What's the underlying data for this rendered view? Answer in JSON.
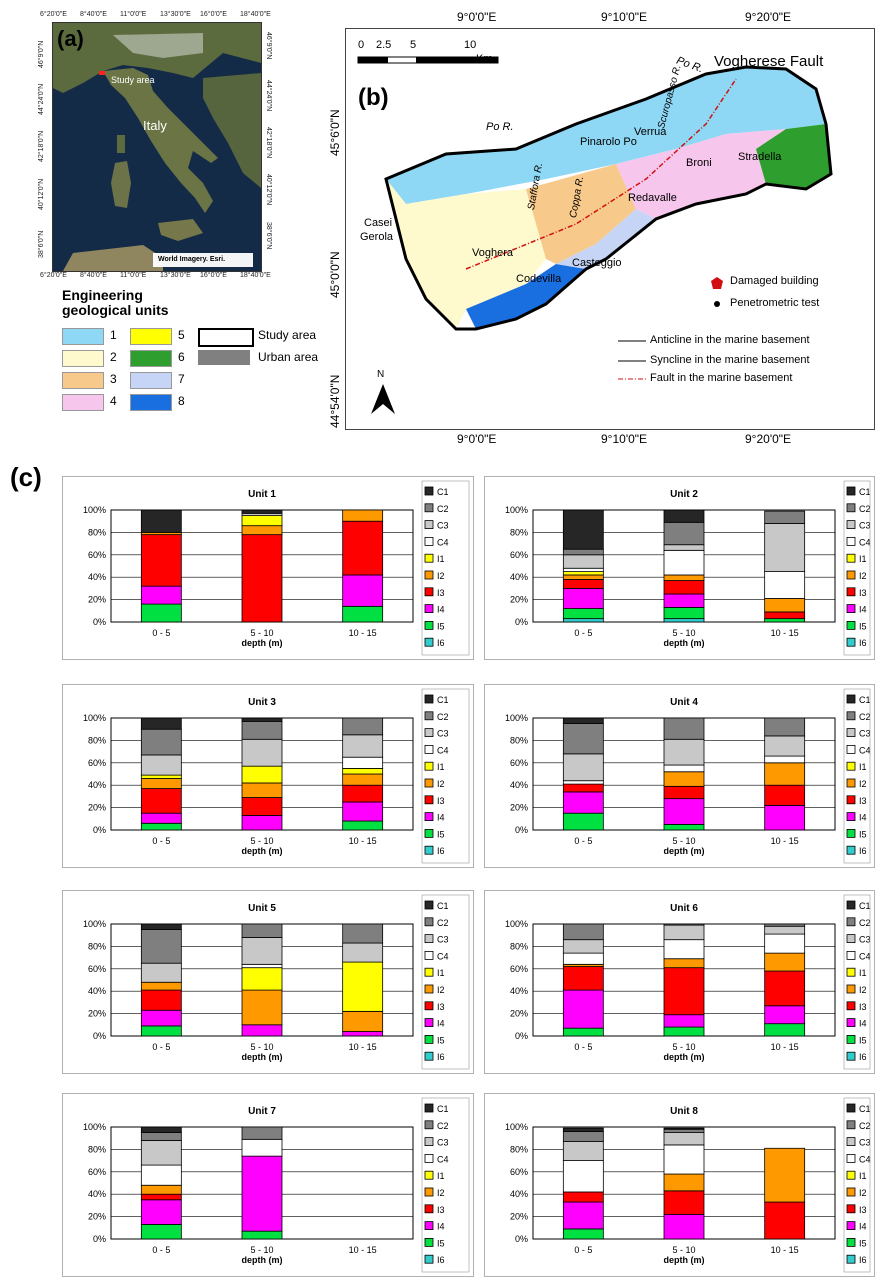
{
  "panel_a": {
    "label": "(a)",
    "study_area_label": "Study area",
    "country_label": "Italy",
    "attribution": "World Imagery. Esri.",
    "top_ticks": [
      "6°20'0\"E",
      "8°40'0\"E",
      "11°0'0\"E",
      "13°30'0\"E",
      "16°0'0\"E",
      "18°40'0\"E"
    ],
    "bottom_ticks": [
      "6°20'0\"E",
      "8°40'0\"E",
      "11°0'0\"E",
      "13°30'0\"E",
      "16°0'0\"E",
      "18°40'0\"E"
    ],
    "left_ticks": [
      "46°9'0\"N",
      "44°24'0\"N",
      "42°18'0\"N",
      "40°12'0\"N",
      "38°6'0\"N"
    ],
    "right_ticks": [
      "46°9'0\"N",
      "44°24'0\"N",
      "42°18'0\"N",
      "40°12'0\"N",
      "38°6'0\"N"
    ]
  },
  "legend_units": {
    "title_line1": "Engineering",
    "title_line2": "geological units",
    "items": [
      {
        "label": "1",
        "color": "#8fd8f5"
      },
      {
        "label": "2",
        "color": "#fffacd"
      },
      {
        "label": "3",
        "color": "#f7c98b"
      },
      {
        "label": "4",
        "color": "#f7c6ec"
      },
      {
        "label": "5",
        "color": "#ffff00"
      },
      {
        "label": "6",
        "color": "#2e9e2e"
      },
      {
        "label": "7",
        "color": "#c6d4f5"
      },
      {
        "label": "8",
        "color": "#1a6fe0"
      }
    ],
    "study_area": "Study area",
    "urban_area": "Urban area",
    "urban_color": "#808080"
  },
  "panel_b": {
    "label": "(b)",
    "top_ticks": [
      "9°0'0\"E",
      "9°10'0\"E",
      "9°20'0\"E"
    ],
    "bottom_ticks": [
      "9°0'0\"E",
      "9°10'0\"E",
      "9°20'0\"E"
    ],
    "left_ticks": [
      "45°6'0\"N",
      "45°0'0\"N",
      "44°54'0\"N"
    ],
    "scale": [
      "0",
      "2.5",
      "5",
      "10",
      "Km"
    ],
    "fault_title": "Vogherese Fault",
    "places": [
      "Verrua",
      "Pinarolo Po",
      "Broni",
      "Stradella",
      "Redavalle",
      "Casteggio",
      "Codevilla",
      "Voghera",
      "Casei",
      "Gerola"
    ],
    "rivers": [
      "Po R.",
      "Po R.",
      "Scuropasso R.",
      "Stafforа R.",
      "Coppa R."
    ],
    "north": "N",
    "legend": {
      "damaged": "Damaged building",
      "penetrometric": "Penetrometric test",
      "anticline": "Anticline in the marine basement",
      "syncline": "Syncline in the marine basement",
      "fault": "Fault in the marine basement"
    }
  },
  "panel_c_label": "(c)",
  "chart_legend": [
    {
      "name": "C1",
      "color": "#262626"
    },
    {
      "name": "C2",
      "color": "#7f7f7f"
    },
    {
      "name": "C3",
      "color": "#c8c8c8"
    },
    {
      "name": "C4",
      "color": "#ffffff"
    },
    {
      "name": "I1",
      "color": "#ffff00"
    },
    {
      "name": "I2",
      "color": "#ff9900"
    },
    {
      "name": "I3",
      "color": "#ff0000"
    },
    {
      "name": "I4",
      "color": "#ff00ff"
    },
    {
      "name": "I5",
      "color": "#00e040"
    },
    {
      "name": "I6",
      "color": "#33cccc"
    }
  ],
  "chart_data": [
    {
      "type": "bar",
      "stacked": true,
      "title": "Unit 1",
      "xlabel": "depth (m)",
      "ylabel": "",
      "ylim": [
        0,
        100
      ],
      "yticks": [
        "0%",
        "20%",
        "40%",
        "60%",
        "80%",
        "100%"
      ],
      "categories": [
        "0 - 5",
        "5 - 10",
        "10 - 15"
      ],
      "series": [
        {
          "name": "I6",
          "values": [
            0,
            0,
            0
          ]
        },
        {
          "name": "I5",
          "values": [
            16,
            0,
            14
          ]
        },
        {
          "name": "I4",
          "values": [
            16,
            0,
            28
          ]
        },
        {
          "name": "I3",
          "values": [
            46,
            78,
            48
          ]
        },
        {
          "name": "I2",
          "values": [
            2,
            8,
            10
          ]
        },
        {
          "name": "I1",
          "values": [
            0,
            9,
            0
          ]
        },
        {
          "name": "C4",
          "values": [
            0,
            0,
            0
          ]
        },
        {
          "name": "C3",
          "values": [
            0,
            2,
            0
          ]
        },
        {
          "name": "C2",
          "values": [
            0,
            0,
            0
          ]
        },
        {
          "name": "C1",
          "values": [
            20,
            3,
            0
          ]
        }
      ]
    },
    {
      "type": "bar",
      "stacked": true,
      "title": "Unit 2",
      "xlabel": "depth (m)",
      "ylabel": "",
      "ylim": [
        0,
        100
      ],
      "yticks": [
        "0%",
        "20%",
        "40%",
        "60%",
        "80%",
        "100%"
      ],
      "categories": [
        "0 - 5",
        "5 - 10",
        "10 - 15"
      ],
      "series": [
        {
          "name": "I6",
          "values": [
            3,
            3,
            0
          ]
        },
        {
          "name": "I5",
          "values": [
            9,
            10,
            3
          ]
        },
        {
          "name": "I4",
          "values": [
            18,
            12,
            0
          ]
        },
        {
          "name": "I3",
          "values": [
            8,
            12,
            6
          ]
        },
        {
          "name": "I2",
          "values": [
            4,
            5,
            12
          ]
        },
        {
          "name": "I1",
          "values": [
            3,
            0,
            0
          ]
        },
        {
          "name": "C4",
          "values": [
            3,
            22,
            24
          ]
        },
        {
          "name": "C3",
          "values": [
            12,
            5,
            43
          ]
        },
        {
          "name": "C2",
          "values": [
            5,
            20,
            11
          ]
        },
        {
          "name": "C1",
          "values": [
            35,
            11,
            0
          ]
        }
      ]
    },
    {
      "type": "bar",
      "stacked": true,
      "title": "Unit 3",
      "xlabel": "depth (m)",
      "ylabel": "",
      "ylim": [
        0,
        100
      ],
      "yticks": [
        "0%",
        "20%",
        "40%",
        "60%",
        "80%",
        "100%"
      ],
      "categories": [
        "0 - 5",
        "5 - 10",
        "10 - 15"
      ],
      "series": [
        {
          "name": "I6",
          "values": [
            0,
            0,
            0
          ]
        },
        {
          "name": "I5",
          "values": [
            6,
            0,
            8
          ]
        },
        {
          "name": "I4",
          "values": [
            9,
            13,
            17
          ]
        },
        {
          "name": "I3",
          "values": [
            22,
            16,
            15
          ]
        },
        {
          "name": "I2",
          "values": [
            9,
            13,
            10
          ]
        },
        {
          "name": "I1",
          "values": [
            3,
            15,
            5
          ]
        },
        {
          "name": "C4",
          "values": [
            0,
            0,
            10
          ]
        },
        {
          "name": "C3",
          "values": [
            18,
            24,
            20
          ]
        },
        {
          "name": "C2",
          "values": [
            23,
            16,
            15
          ]
        },
        {
          "name": "C1",
          "values": [
            10,
            3,
            0
          ]
        }
      ]
    },
    {
      "type": "bar",
      "stacked": true,
      "title": "Unit 4",
      "xlabel": "depth (m)",
      "ylabel": "",
      "ylim": [
        0,
        100
      ],
      "yticks": [
        "0%",
        "20%",
        "40%",
        "60%",
        "80%",
        "100%"
      ],
      "categories": [
        "0 - 5",
        "5 - 10",
        "10 - 15"
      ],
      "series": [
        {
          "name": "I6",
          "values": [
            0,
            0,
            0
          ]
        },
        {
          "name": "I5",
          "values": [
            15,
            5,
            0
          ]
        },
        {
          "name": "I4",
          "values": [
            19,
            23,
            22
          ]
        },
        {
          "name": "I3",
          "values": [
            7,
            11,
            18
          ]
        },
        {
          "name": "I2",
          "values": [
            0,
            13,
            20
          ]
        },
        {
          "name": "I1",
          "values": [
            0,
            0,
            0
          ]
        },
        {
          "name": "C4",
          "values": [
            3,
            6,
            6
          ]
        },
        {
          "name": "C3",
          "values": [
            24,
            23,
            18
          ]
        },
        {
          "name": "C2",
          "values": [
            27,
            19,
            16
          ]
        },
        {
          "name": "C1",
          "values": [
            5,
            0,
            0
          ]
        }
      ]
    },
    {
      "type": "bar",
      "stacked": true,
      "title": "Unit 5",
      "xlabel": "depth (m)",
      "ylabel": "",
      "ylim": [
        0,
        100
      ],
      "yticks": [
        "0%",
        "20%",
        "40%",
        "60%",
        "80%",
        "100%"
      ],
      "categories": [
        "0 - 5",
        "5 - 10",
        "10 - 15"
      ],
      "series": [
        {
          "name": "I6",
          "values": [
            0,
            0,
            0
          ]
        },
        {
          "name": "I5",
          "values": [
            9,
            0,
            0
          ]
        },
        {
          "name": "I4",
          "values": [
            14,
            10,
            4
          ]
        },
        {
          "name": "I3",
          "values": [
            18,
            0,
            0
          ]
        },
        {
          "name": "I2",
          "values": [
            7,
            31,
            18
          ]
        },
        {
          "name": "I1",
          "values": [
            0,
            20,
            44
          ]
        },
        {
          "name": "C4",
          "values": [
            0,
            3,
            0
          ]
        },
        {
          "name": "C3",
          "values": [
            17,
            24,
            17
          ]
        },
        {
          "name": "C2",
          "values": [
            30,
            12,
            17
          ]
        },
        {
          "name": "C1",
          "values": [
            5,
            0,
            0
          ]
        }
      ]
    },
    {
      "type": "bar",
      "stacked": true,
      "title": "Unit 6",
      "xlabel": "depth (m)",
      "ylabel": "",
      "ylim": [
        0,
        100
      ],
      "yticks": [
        "0%",
        "20%",
        "40%",
        "60%",
        "80%",
        "100%"
      ],
      "categories": [
        "0 - 5",
        "5 - 10",
        "10 - 15"
      ],
      "series": [
        {
          "name": "I6",
          "values": [
            0,
            0,
            0
          ]
        },
        {
          "name": "I5",
          "values": [
            7,
            8,
            11
          ]
        },
        {
          "name": "I4",
          "values": [
            34,
            11,
            16
          ]
        },
        {
          "name": "I3",
          "values": [
            21,
            42,
            31
          ]
        },
        {
          "name": "I2",
          "values": [
            2,
            8,
            16
          ]
        },
        {
          "name": "I1",
          "values": [
            0,
            0,
            0
          ]
        },
        {
          "name": "C4",
          "values": [
            10,
            17,
            17
          ]
        },
        {
          "name": "C3",
          "values": [
            12,
            13,
            7
          ]
        },
        {
          "name": "C2",
          "values": [
            14,
            1,
            2
          ]
        },
        {
          "name": "C1",
          "values": [
            0,
            0,
            0
          ]
        }
      ]
    },
    {
      "type": "bar",
      "stacked": true,
      "title": "Unit 7",
      "xlabel": "depth (m)",
      "ylabel": "",
      "ylim": [
        0,
        100
      ],
      "yticks": [
        "0%",
        "20%",
        "40%",
        "60%",
        "80%",
        "100%"
      ],
      "categories": [
        "0 - 5",
        "5 - 10",
        "10 - 15"
      ],
      "series": [
        {
          "name": "I6",
          "values": [
            0,
            0,
            0
          ]
        },
        {
          "name": "I5",
          "values": [
            13,
            7,
            0
          ]
        },
        {
          "name": "I4",
          "values": [
            22,
            67,
            0
          ]
        },
        {
          "name": "I3",
          "values": [
            5,
            0,
            0
          ]
        },
        {
          "name": "I2",
          "values": [
            8,
            0,
            0
          ]
        },
        {
          "name": "I1",
          "values": [
            0,
            0,
            0
          ]
        },
        {
          "name": "C4",
          "values": [
            18,
            15,
            0
          ]
        },
        {
          "name": "C3",
          "values": [
            22,
            0,
            0
          ]
        },
        {
          "name": "C2",
          "values": [
            7,
            11,
            0
          ]
        },
        {
          "name": "C1",
          "values": [
            5,
            0,
            0
          ]
        }
      ]
    },
    {
      "type": "bar",
      "stacked": true,
      "title": "Unit 8",
      "xlabel": "depth (m)",
      "ylabel": "",
      "ylim": [
        0,
        100
      ],
      "yticks": [
        "0%",
        "20%",
        "40%",
        "60%",
        "80%",
        "100%"
      ],
      "categories": [
        "0 - 5",
        "5 - 10",
        "10 - 15"
      ],
      "series": [
        {
          "name": "I6",
          "values": [
            0,
            0,
            0
          ]
        },
        {
          "name": "I5",
          "values": [
            9,
            0,
            0
          ]
        },
        {
          "name": "I4",
          "values": [
            24,
            22,
            0
          ]
        },
        {
          "name": "I3",
          "values": [
            9,
            21,
            33
          ]
        },
        {
          "name": "I2",
          "values": [
            0,
            15,
            48
          ]
        },
        {
          "name": "I1",
          "values": [
            0,
            0,
            0
          ]
        },
        {
          "name": "C4",
          "values": [
            28,
            26,
            0
          ]
        },
        {
          "name": "C3",
          "values": [
            17,
            11,
            0
          ]
        },
        {
          "name": "C2",
          "values": [
            9,
            3,
            0
          ]
        },
        {
          "name": "C1",
          "values": [
            3,
            1,
            0
          ]
        }
      ]
    }
  ]
}
